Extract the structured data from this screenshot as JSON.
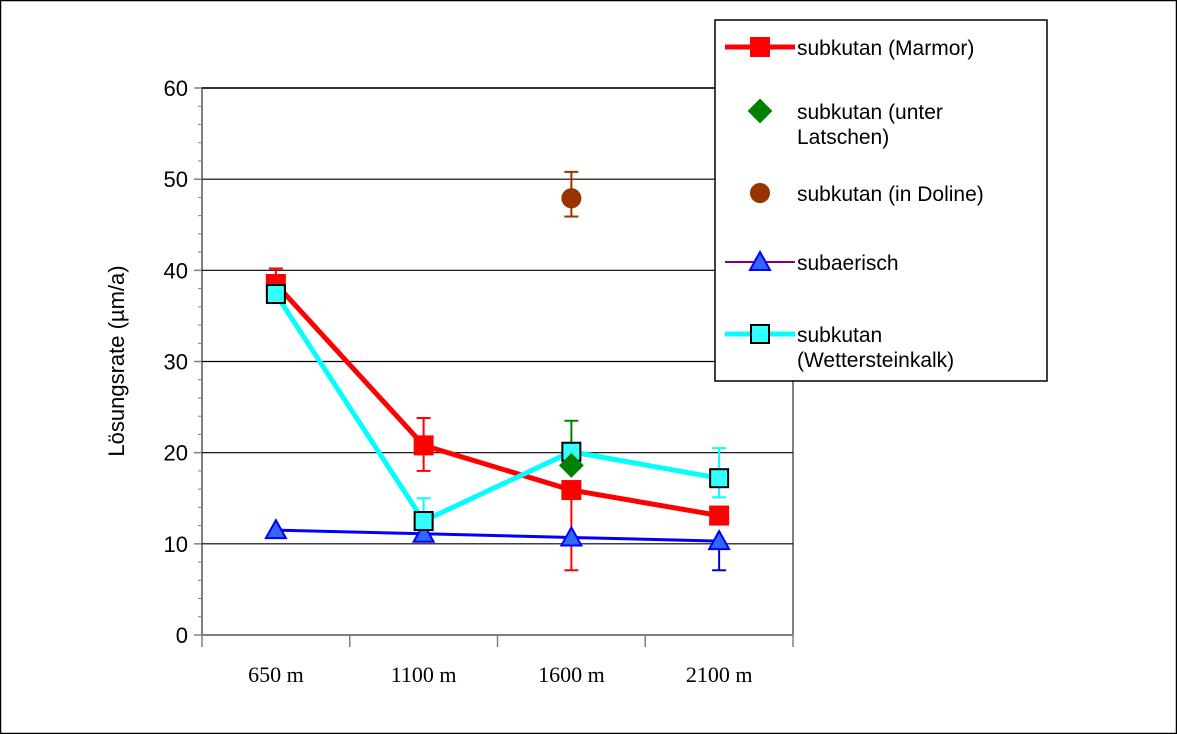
{
  "chart_data": {
    "type": "line",
    "title": "",
    "xlabel": "",
    "ylabel": "Lösungsrate (µm/a)",
    "categories": [
      "650 m",
      "1100 m",
      "1600 m",
      "2100 m"
    ],
    "ylim": [
      0,
      60
    ],
    "yticks": [
      "0",
      "10",
      "20",
      "30",
      "40",
      "50",
      "60"
    ],
    "grid": "horizontal",
    "legend_position": "top-right",
    "series": [
      {
        "name": "subkutan (Marmor)",
        "values": [
          38.5,
          20.8,
          15.9,
          13.1
        ],
        "error_low": [
          37.2,
          18.0,
          7.1,
          null
        ],
        "error_high": [
          40.2,
          23.8,
          null,
          null
        ],
        "error_color": "#ff0000",
        "color": "#ff0000",
        "marker": "square",
        "marker_fill": "#ff0000",
        "marker_stroke": "#ff0000",
        "line": true
      },
      {
        "name": "subkutan (unter Latschen)",
        "legend_lines": [
          "subkutan (unter",
          "Latschen)"
        ],
        "values": [
          null,
          null,
          18.6,
          null
        ],
        "error_low": [
          null,
          null,
          null,
          null
        ],
        "error_high": [
          null,
          null,
          23.5,
          null
        ],
        "error_color": "#008000",
        "color": "#008000",
        "marker": "diamond",
        "marker_fill": "#008000",
        "marker_stroke": "#008000",
        "line": false
      },
      {
        "name": "subkutan (in Doline)",
        "values": [
          null,
          null,
          47.9,
          null
        ],
        "error_low": [
          null,
          null,
          45.9,
          null
        ],
        "error_high": [
          null,
          null,
          50.8,
          null
        ],
        "error_color": "#993300",
        "color": "#993300",
        "marker": "circle",
        "marker_fill": "#993300",
        "marker_stroke": "#993300",
        "line": false
      },
      {
        "name": "subaerisch",
        "values": [
          11.5,
          11.1,
          10.7,
          10.3
        ],
        "error_low": [
          null,
          null,
          null,
          7.1
        ],
        "error_high": [
          null,
          null,
          null,
          null
        ],
        "error_color": "#0000cc",
        "color": "#0000ff",
        "legend_line_color": "#800080",
        "marker": "triangle",
        "marker_fill": "#3366ff",
        "marker_stroke": "#0000ff",
        "line": true
      },
      {
        "name": "subkutan (Wettersteinkalk)",
        "legend_lines": [
          "subkutan",
          "(Wettersteinkalk)"
        ],
        "values": [
          37.4,
          12.5,
          20.1,
          17.2
        ],
        "error_low": [
          null,
          10.6,
          null,
          15.1
        ],
        "error_high": [
          null,
          15.0,
          null,
          20.5
        ],
        "error_color": "#00ffff",
        "color": "#00ffff",
        "marker": "square",
        "marker_fill": "#33ffff",
        "marker_stroke": "#000000",
        "line": true
      }
    ]
  }
}
